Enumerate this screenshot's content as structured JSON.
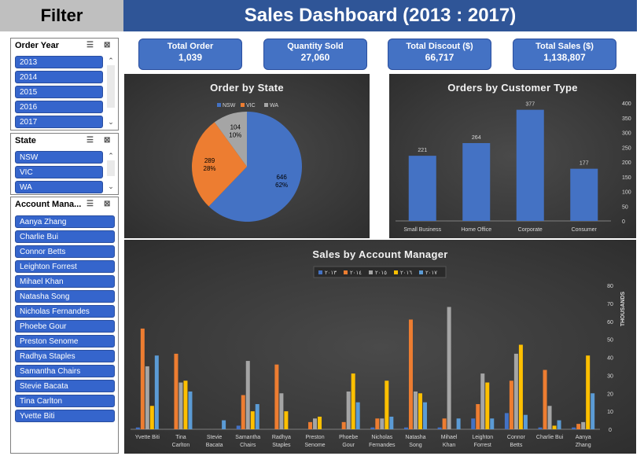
{
  "filter_title": "Filter",
  "dashboard_title": "Sales Dashboard (2013 : 2017)",
  "slicers": {
    "order_year": {
      "title": "Order Year",
      "items": [
        "2013",
        "2014",
        "2015",
        "2016",
        "2017"
      ]
    },
    "state": {
      "title": "State",
      "items": [
        "NSW",
        "VIC",
        "WA"
      ]
    },
    "account_manager": {
      "title": "Account Mana...",
      "items": [
        "Aanya Zhang",
        "Charlie Bui",
        "Connor Betts",
        "Leighton Forrest",
        "Mihael Khan",
        "Natasha Song",
        "Nicholas Fernandes",
        "Phoebe Gour",
        "Preston Senome",
        "Radhya Staples",
        "Samantha Chairs",
        "Stevie Bacata",
        "Tina Carlton",
        "Yvette Biti"
      ]
    }
  },
  "kpis": [
    {
      "label": "Total Order",
      "value": "1,039"
    },
    {
      "label": "Quantity Sold",
      "value": "27,060"
    },
    {
      "label": "Total Discout ($)",
      "value": "66,717"
    },
    {
      "label": "Total Sales ($)",
      "value": "1,138,807"
    }
  ],
  "chart_data": [
    {
      "type": "pie",
      "title": "Order by State",
      "categories": [
        "NSW",
        "VIC",
        "WA"
      ],
      "values": [
        646,
        289,
        104
      ],
      "percent_labels": [
        "62%",
        "28%",
        "10%"
      ],
      "colors": [
        "#4472c4",
        "#ed7d31",
        "#a5a5a5"
      ],
      "legend": "top"
    },
    {
      "type": "bar",
      "title": "Orders by Customer Type",
      "categories": [
        "Small Business",
        "Home Office",
        "Corporate",
        "Consumer"
      ],
      "values": [
        221,
        264,
        377,
        177
      ],
      "ylim": [
        0,
        400
      ],
      "yticks": [
        "0",
        "50",
        "100",
        "150",
        "200",
        "250",
        "300",
        "350",
        "400"
      ],
      "color": "#4472c4",
      "grid": false
    },
    {
      "type": "bar",
      "title": "Sales by Account Manager",
      "ylabel": "THOUSANDS",
      "ylim": [
        0,
        80
      ],
      "yticks": [
        "0",
        "10",
        "20",
        "30",
        "40",
        "50",
        "60",
        "70",
        "80"
      ],
      "legend": "top",
      "categories": [
        "Yvette Biti",
        "Tina Carlton",
        "Stevie Bacata",
        "Samantha Chairs",
        "Radhya Staples",
        "Preston Senome",
        "Phoebe Gour",
        "Nicholas Fernandes",
        "Natasha Song",
        "Mihael Khan",
        "Leighton Forrest",
        "Connor Betts",
        "Charlie Bui",
        "Aanya Zhang"
      ],
      "series": [
        {
          "name": "٢٠١٣",
          "color": "#4472c4",
          "values": [
            1,
            0,
            0,
            2,
            0,
            0,
            0,
            1,
            1,
            1,
            6,
            9,
            1,
            1
          ]
        },
        {
          "name": "٢٠١٤",
          "color": "#ed7d31",
          "values": [
            56,
            42,
            0,
            19,
            36,
            4,
            4,
            6,
            61,
            6,
            14,
            27,
            33,
            3
          ]
        },
        {
          "name": "٢٠١٥",
          "color": "#a5a5a5",
          "values": [
            35,
            26,
            0,
            38,
            20,
            6,
            21,
            6,
            21,
            68,
            31,
            42,
            13,
            4
          ]
        },
        {
          "name": "٢٠١٦",
          "color": "#ffc000",
          "values": [
            13,
            27,
            0,
            10,
            10,
            7,
            31,
            27,
            20,
            0,
            26,
            47,
            2,
            41
          ]
        },
        {
          "name": "٢٠١٧",
          "color": "#5b9bd5",
          "values": [
            41,
            21,
            5,
            14,
            0,
            0,
            15,
            7,
            15,
            6,
            6,
            8,
            5,
            20
          ]
        }
      ]
    }
  ]
}
